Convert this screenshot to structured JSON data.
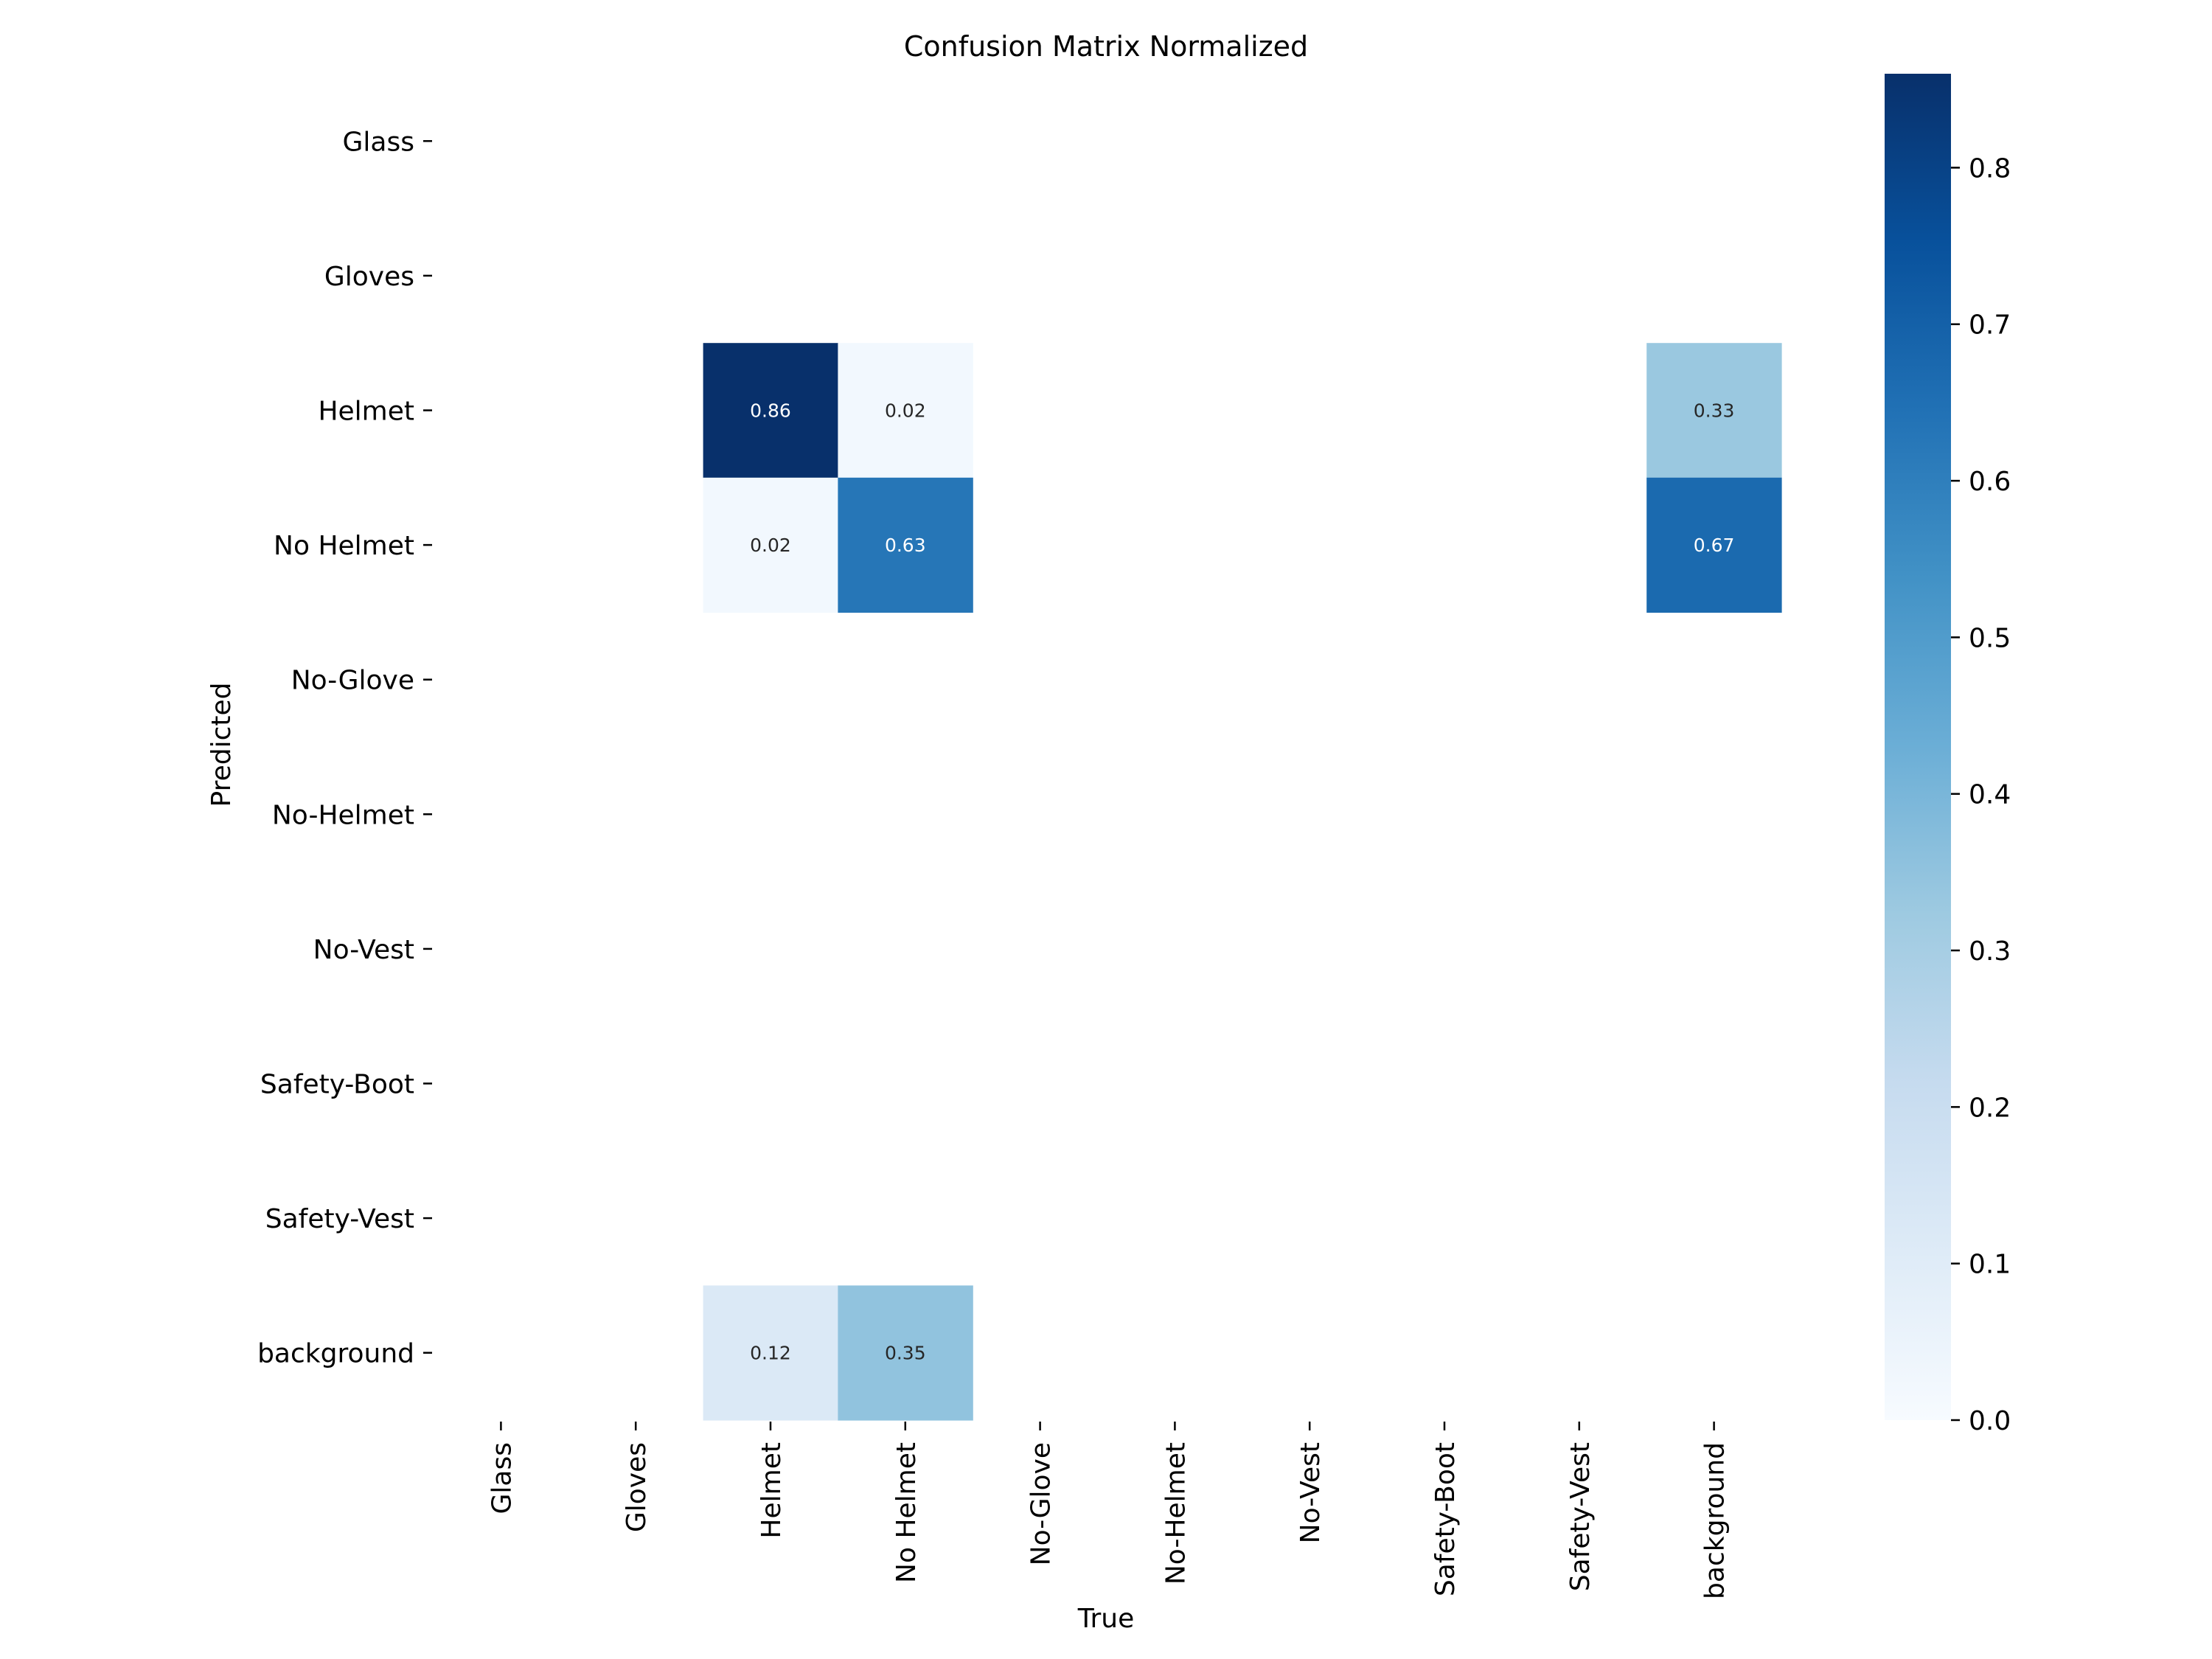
{
  "chart_data": {
    "type": "heatmap",
    "title": "Confusion Matrix Normalized",
    "xlabel": "True",
    "ylabel": "Predicted",
    "x_categories": [
      "Glass",
      "Gloves",
      "Helmet",
      "No Helmet",
      "No-Glove",
      "No-Helmet",
      "No-Vest",
      "Safety-Boot",
      "Safety-Vest",
      "background"
    ],
    "y_categories": [
      "Glass",
      "Gloves",
      "Helmet",
      "No Helmet",
      "No-Glove",
      "No-Helmet",
      "No-Vest",
      "Safety-Boot",
      "Safety-Vest",
      "background"
    ],
    "cells": [
      {
        "row": "Helmet",
        "col": "Helmet",
        "value": 0.86,
        "label": "0.86"
      },
      {
        "row": "Helmet",
        "col": "No Helmet",
        "value": 0.02,
        "label": "0.02"
      },
      {
        "row": "Helmet",
        "col": "background",
        "value": 0.33,
        "label": "0.33"
      },
      {
        "row": "No Helmet",
        "col": "Helmet",
        "value": 0.02,
        "label": "0.02"
      },
      {
        "row": "No Helmet",
        "col": "No Helmet",
        "value": 0.63,
        "label": "0.63"
      },
      {
        "row": "No Helmet",
        "col": "background",
        "value": 0.67,
        "label": "0.67"
      },
      {
        "row": "background",
        "col": "Helmet",
        "value": 0.12,
        "label": "0.12"
      },
      {
        "row": "background",
        "col": "No Helmet",
        "value": 0.35,
        "label": "0.35"
      }
    ],
    "colorbar": {
      "colormap": "Blues",
      "range": [
        0.0,
        0.86
      ],
      "ticks": [
        0.0,
        0.1,
        0.2,
        0.3,
        0.4,
        0.5,
        0.6,
        0.7,
        0.8
      ],
      "tick_labels": [
        "0.0",
        "0.1",
        "0.2",
        "0.3",
        "0.4",
        "0.5",
        "0.6",
        "0.7",
        "0.8"
      ]
    },
    "grid": false
  }
}
